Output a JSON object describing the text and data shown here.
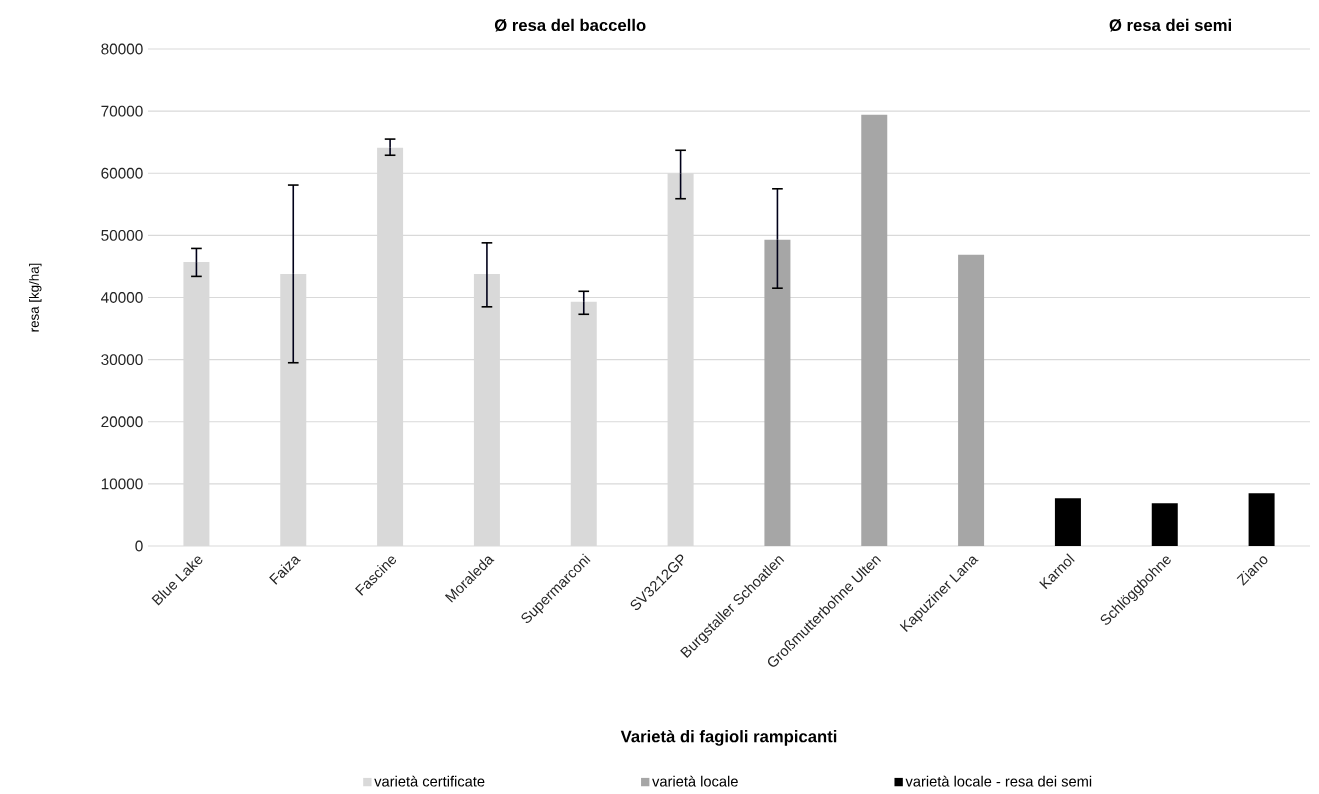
{
  "chart_data": {
    "type": "bar",
    "xlabel": "Varietà di fagioli rampicanti",
    "ylabel": "resa [kg/ha]",
    "annotations": [
      "Ø resa del baccello",
      "Ø resa dei semi"
    ],
    "categories": [
      "Blue Lake",
      "Faiza",
      "Fascine",
      "Moraleda",
      "Supermarconi",
      "SV3212GP",
      "Burgstaller Schoatlen",
      "Großmutterbohne Ulten",
      "Kapuziner Lana",
      "Karnol",
      "Schlöggbohne",
      "Ziano"
    ],
    "series": [
      {
        "name": "varietà certificate",
        "color": "#d9d9d9",
        "values": [
          45700,
          43800,
          64100,
          43800,
          39300,
          60000,
          null,
          null,
          null,
          null,
          null,
          null
        ],
        "errors": [
          [
            43400,
            47900
          ],
          [
            29500,
            58100
          ],
          [
            62900,
            65500
          ],
          [
            38500,
            48800
          ],
          [
            37300,
            41000
          ],
          [
            55900,
            63700
          ],
          null,
          null,
          null,
          null,
          null,
          null
        ]
      },
      {
        "name": "varietà locale",
        "color": "#a6a6a6",
        "values": [
          null,
          null,
          null,
          null,
          null,
          null,
          49300,
          69400,
          46900,
          null,
          null,
          null
        ],
        "errors": [
          null,
          null,
          null,
          null,
          null,
          null,
          [
            41500,
            57500
          ],
          null,
          null,
          null,
          null,
          null
        ]
      },
      {
        "name": "varietà locale - resa dei semi",
        "color": "#000000",
        "values": [
          null,
          null,
          null,
          null,
          null,
          null,
          null,
          null,
          null,
          7700,
          6900,
          8500
        ]
      }
    ],
    "ylim": [
      0,
      80000
    ],
    "yticks": [
      0,
      10000,
      20000,
      30000,
      40000,
      50000,
      60000,
      70000,
      80000
    ],
    "grid": "y",
    "legend": "bottom"
  }
}
